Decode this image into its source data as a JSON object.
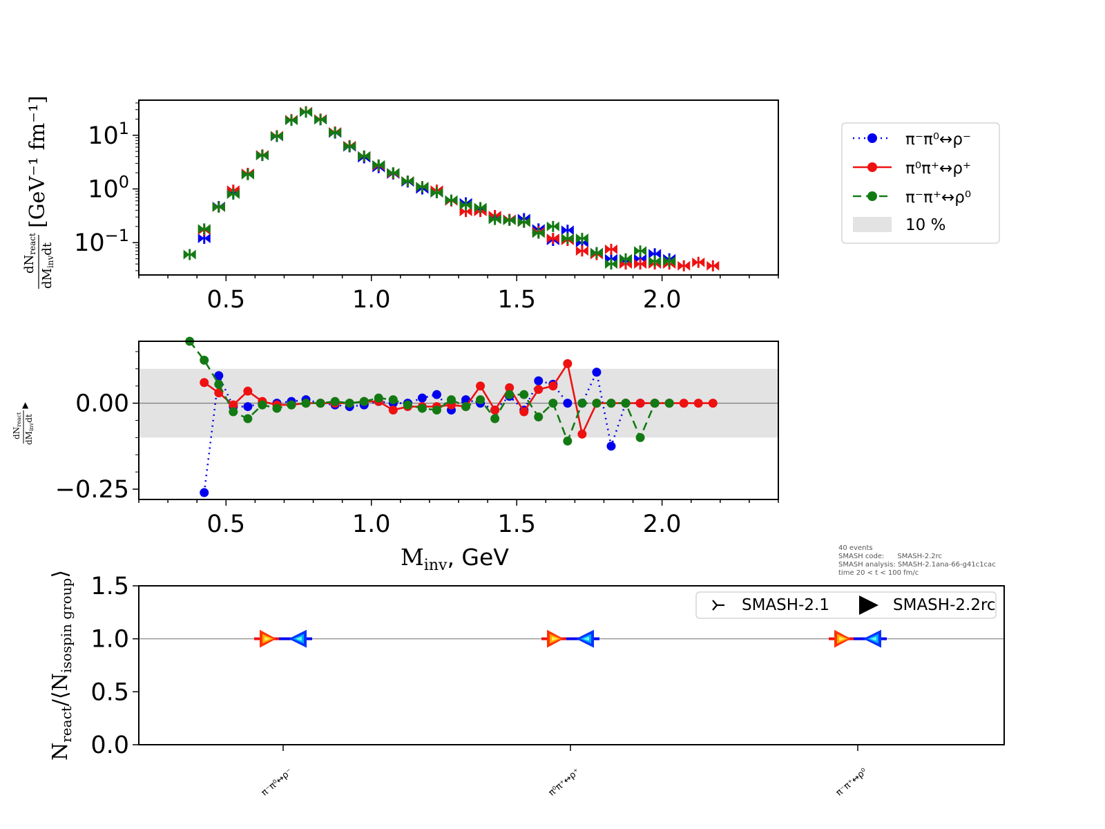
{
  "colors": {
    "blue": "#0000ee",
    "red": "#ee1111",
    "green": "#137a13",
    "band": "#e3e3e3",
    "zero_line": "#888888"
  },
  "legend": {
    "items": [
      {
        "label": "π⁻π⁰↔ρ⁻",
        "color": "#0000ee",
        "style": "dotted"
      },
      {
        "label": "π⁰π⁺↔ρ⁺",
        "color": "#ee1111",
        "style": "solid"
      },
      {
        "label": "π⁻π⁺↔ρ⁰",
        "color": "#137a13",
        "style": "dashed"
      }
    ],
    "band_label": "10 %"
  },
  "info_lines": [
    "40 events",
    "SMASH code:      SMASH-2.2rc",
    "SMASH analysis: SMASH-2.1ana-66-g41c1cac",
    "time 20 < t < 100 fm/c"
  ],
  "legend2": {
    "items": [
      "SMASH-2.1",
      "SMASH-2.2rc"
    ]
  },
  "x_tick_labels": [
    "0.5",
    "1.0",
    "1.5",
    "2.0"
  ],
  "top_y_tick_labels": [
    [
      "10",
      "1"
    ],
    [
      "10",
      "0"
    ],
    [
      "10",
      "−1"
    ]
  ],
  "mid_y_tick_labels": [
    "0.00",
    "−0.25"
  ],
  "bottom_y_tick_labels": [
    "1.5",
    "1.0",
    "0.5",
    "0.0"
  ],
  "categories": [
    "π⁻π⁰↔ρ⁻",
    "π⁰π⁺↔ρ⁺",
    "π⁻π⁺↔ρ⁰"
  ],
  "axis_labels": {
    "top_y_num": "dN",
    "top_y_num_sub": "react",
    "top_y_den": "dM",
    "top_y_den_sub": "inv",
    "top_y_den_tail": "dt",
    "top_y_unit": "[GeV⁻¹ fm⁻¹]",
    "mid_y_num": "dN",
    "mid_y_num_sub": "react",
    "mid_y_den": "dM",
    "mid_y_den_sub": "inv",
    "mid_y_den_tail": "dt",
    "mid_y_marker": "▲",
    "xlabel_main": "M",
    "xlabel_sub": "inv",
    "xlabel_tail": ", GeV",
    "bottom_y_main": "N",
    "bottom_y_sub1": "react",
    "bottom_y_mid": "/⟨N",
    "bottom_y_sub2": "isospin group",
    "bottom_y_tail": "⟩"
  },
  "chart_data": [
    {
      "type": "scatter",
      "panel": "spectrum",
      "yscale": "log",
      "xlim": [
        0.2,
        2.4
      ],
      "ylim": [
        0.025,
        45
      ],
      "series": [
        {
          "name": "π⁻π⁰↔ρ⁻",
          "color": "#0000ee",
          "x": [
            0.425,
            0.475,
            0.525,
            0.575,
            0.625,
            0.675,
            0.725,
            0.775,
            0.825,
            0.875,
            0.925,
            0.975,
            1.025,
            1.075,
            1.125,
            1.175,
            1.225,
            1.275,
            1.325,
            1.375,
            1.425,
            1.475,
            1.525,
            1.575,
            1.625,
            1.675,
            1.725,
            1.775,
            1.825,
            1.875,
            1.925,
            1.975,
            2.025
          ],
          "y": [
            0.12,
            0.47,
            0.85,
            1.9,
            4.2,
            9.5,
            19,
            27,
            19.5,
            11,
            6.1,
            3.8,
            2.5,
            1.9,
            1.35,
            1.0,
            0.85,
            0.6,
            0.55,
            0.42,
            0.3,
            0.27,
            0.28,
            0.18,
            0.11,
            0.17,
            0.1,
            0.065,
            0.05,
            0.045,
            0.05,
            0.062,
            0.05
          ]
        },
        {
          "name": "π⁰π⁺↔ρ⁺",
          "color": "#ee1111",
          "x": [
            0.425,
            0.475,
            0.525,
            0.575,
            0.625,
            0.675,
            0.725,
            0.775,
            0.825,
            0.875,
            0.925,
            0.975,
            1.025,
            1.075,
            1.125,
            1.175,
            1.225,
            1.275,
            1.325,
            1.375,
            1.425,
            1.475,
            1.525,
            1.575,
            1.625,
            1.675,
            1.725,
            1.775,
            1.825,
            1.875,
            1.925,
            1.975,
            2.025,
            2.075,
            2.125,
            2.175
          ],
          "y": [
            0.17,
            0.46,
            0.95,
            1.95,
            4.3,
            9.8,
            19.5,
            27.5,
            20,
            11.5,
            6.4,
            4.1,
            2.7,
            1.95,
            1.4,
            1.1,
            0.95,
            0.6,
            0.38,
            0.38,
            0.32,
            0.27,
            0.24,
            0.16,
            0.12,
            0.11,
            0.07,
            0.06,
            0.075,
            0.04,
            0.04,
            0.04,
            0.04,
            0.037,
            0.043,
            0.037
          ]
        },
        {
          "name": "π⁻π⁺↔ρ⁰",
          "color": "#137a13",
          "x": [
            0.375,
            0.425,
            0.475,
            0.525,
            0.575,
            0.625,
            0.675,
            0.725,
            0.775,
            0.825,
            0.875,
            0.925,
            0.975,
            1.025,
            1.075,
            1.125,
            1.175,
            1.225,
            1.275,
            1.325,
            1.375,
            1.425,
            1.475,
            1.525,
            1.575,
            1.625,
            1.675,
            1.725,
            1.775,
            1.825,
            1.875,
            1.925,
            1.975,
            2.025
          ],
          "y": [
            0.06,
            0.18,
            0.46,
            0.8,
            1.85,
            4.2,
            9.6,
            19,
            27,
            19.5,
            11.2,
            6.2,
            4.1,
            2.8,
            2.0,
            1.4,
            1.1,
            0.85,
            0.62,
            0.5,
            0.45,
            0.27,
            0.26,
            0.24,
            0.15,
            0.2,
            0.12,
            0.12,
            0.065,
            0.04,
            0.05,
            0.07,
            0.045,
            0.045
          ]
        }
      ]
    },
    {
      "type": "line",
      "panel": "relative_difference",
      "xlim": [
        0.2,
        2.4
      ],
      "ylim": [
        -0.28,
        0.18
      ],
      "band": [
        -0.1,
        0.1
      ],
      "series": [
        {
          "name": "π⁻π⁰↔ρ⁻",
          "color": "#0000ee",
          "x": [
            0.425,
            0.475,
            0.525,
            0.575,
            0.625,
            0.675,
            0.725,
            0.775,
            0.825,
            0.875,
            0.925,
            0.975,
            1.025,
            1.075,
            1.125,
            1.175,
            1.225,
            1.275,
            1.325,
            1.375,
            1.425,
            1.475,
            1.525,
            1.575,
            1.625,
            1.675,
            1.725,
            1.775,
            1.825,
            1.875,
            1.925,
            1.975,
            2.025
          ],
          "y": [
            -0.26,
            0.08,
            -0.01,
            -0.01,
            0.0,
            0.0,
            0.005,
            0.01,
            0.0,
            -0.005,
            -0.01,
            -0.005,
            0.005,
            0.0,
            0.0,
            0.015,
            0.025,
            -0.02,
            0.01,
            0.0,
            -0.02,
            0.02,
            -0.02,
            0.065,
            0.055,
            0.0,
            0.0,
            0.09,
            -0.125,
            0.0,
            0.0,
            0.0,
            0.0
          ]
        },
        {
          "name": "π⁰π⁺↔ρ⁺",
          "color": "#ee1111",
          "x": [
            0.425,
            0.475,
            0.525,
            0.575,
            0.625,
            0.675,
            0.725,
            0.775,
            0.825,
            0.875,
            0.925,
            0.975,
            1.025,
            1.075,
            1.125,
            1.175,
            1.225,
            1.275,
            1.325,
            1.375,
            1.425,
            1.475,
            1.525,
            1.575,
            1.625,
            1.675,
            1.725,
            1.775,
            1.825,
            1.875,
            1.925,
            1.975,
            2.025,
            2.075,
            2.125,
            2.175
          ],
          "y": [
            0.06,
            0.03,
            -0.005,
            0.035,
            0.005,
            -0.005,
            -0.005,
            0.0,
            0.0,
            0.0,
            0.0,
            0.005,
            0.005,
            -0.02,
            -0.01,
            -0.01,
            -0.01,
            -0.005,
            -0.01,
            0.05,
            -0.02,
            0.045,
            -0.025,
            0.04,
            0.05,
            0.115,
            -0.09,
            0.0,
            0.0,
            0.0,
            0.0,
            0.0,
            0.0,
            0.0,
            0.0,
            0.0
          ]
        },
        {
          "name": "π⁻π⁺↔ρ⁰",
          "color": "#137a13",
          "x": [
            0.375,
            0.425,
            0.475,
            0.525,
            0.575,
            0.625,
            0.675,
            0.725,
            0.775,
            0.825,
            0.875,
            0.925,
            0.975,
            1.025,
            1.075,
            1.125,
            1.175,
            1.225,
            1.275,
            1.325,
            1.375,
            1.425,
            1.475,
            1.525,
            1.575,
            1.625,
            1.675,
            1.725,
            1.775,
            1.825,
            1.875,
            1.925,
            1.975,
            2.025
          ],
          "y": [
            0.18,
            0.125,
            0.055,
            -0.025,
            -0.045,
            -0.005,
            -0.015,
            -0.005,
            0.0,
            0.0,
            0.005,
            0.0,
            0.005,
            0.015,
            0.01,
            -0.005,
            -0.015,
            -0.02,
            0.01,
            -0.01,
            0.01,
            -0.045,
            0.025,
            0.025,
            -0.04,
            0.0,
            -0.11,
            0.0,
            0.0,
            0.0,
            0.0,
            -0.1,
            0.0,
            0.0
          ]
        }
      ]
    },
    {
      "type": "scatter",
      "panel": "normalized_counts",
      "ylim": [
        0.0,
        1.5
      ],
      "categories": [
        "π⁻π⁰↔ρ⁻",
        "π⁰π⁺↔ρ⁺",
        "π⁻π⁺↔ρ⁰"
      ],
      "series": [
        {
          "name": "SMASH-2.1",
          "values": [
            1.0,
            1.0,
            1.0
          ]
        },
        {
          "name": "SMASH-2.2rc",
          "values": [
            1.0,
            1.0,
            1.0
          ]
        }
      ]
    }
  ]
}
